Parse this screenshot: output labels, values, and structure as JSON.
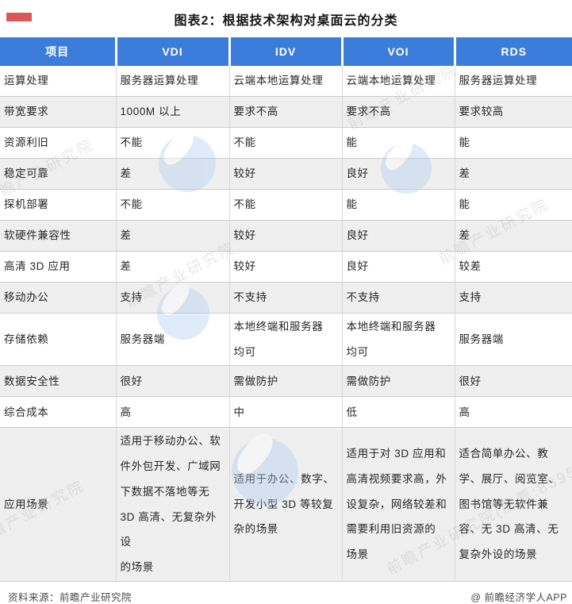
{
  "title": "图表2：根据技术架构对桌面云的分类",
  "footer": {
    "source": "资料来源：前瞻产业研究院",
    "credit": "@ 前瞻经济学人APP"
  },
  "watermark": {
    "text": "前瞻产业研究院",
    "text_long": "前瞻产业研究院(股票:839599)"
  },
  "colors": {
    "header_bg": "#3C7DDC",
    "header_text": "#FFFFFF",
    "row_alt_bg": "#EFEFEF",
    "watermark_blue": "#AECDF0"
  },
  "chart_data": {
    "type": "table",
    "columns": [
      "项目",
      "VDI",
      "IDV",
      "VOI",
      "RDS"
    ],
    "rows": [
      {
        "label": "运算处理",
        "values": [
          "服务器运算处理",
          "云端本地运算处理",
          "云端本地运算处理",
          "服务器运算处理"
        ]
      },
      {
        "label": "带宽要求",
        "values": [
          "1000M 以上",
          "要求不高",
          "要求不高",
          "要求较高"
        ]
      },
      {
        "label": "资源利旧",
        "values": [
          "不能",
          "不能",
          "能",
          "能"
        ]
      },
      {
        "label": "稳定可靠",
        "values": [
          "差",
          "较好",
          "良好",
          "差"
        ]
      },
      {
        "label": "探机部署",
        "values": [
          "不能",
          "不能",
          "能",
          "能"
        ]
      },
      {
        "label": "软硬件兼容性",
        "values": [
          "差",
          "较好",
          "良好",
          "差"
        ]
      },
      {
        "label": "高清 3D 应用",
        "values": [
          "差",
          "较好",
          "良好",
          "较差"
        ]
      },
      {
        "label": "移动办公",
        "values": [
          "支持",
          "不支持",
          "不支持",
          "支持"
        ]
      },
      {
        "label": "存储依赖",
        "values": [
          "服务器端",
          "本地终端和服务器\n均可",
          "本地终端和服务器\n均可",
          "服务器端"
        ]
      },
      {
        "label": "数据安全性",
        "values": [
          "很好",
          "需做防护",
          "需做防护",
          "很好"
        ]
      },
      {
        "label": "综合成本",
        "values": [
          "高",
          "中",
          "低",
          "高"
        ]
      },
      {
        "label": "应用场景",
        "values": [
          "适用于移动办公、软\n件外包开发、广域网\n下数据不落地等无\n3D 高清、无复杂外设\n的场景",
          "适用于办公、数字、\n开发小型 3D 等较复\n杂的场景",
          "适用于对 3D 应用和\n高清视频要求高，外\n设复杂，网络较差和\n需要利用旧资源的\n场景",
          "适合简单办公、教\n学、展厅、阅览室、\n图书馆等无软件兼\n容、无 3D 高清、无\n复杂外设的场景"
        ]
      }
    ]
  }
}
